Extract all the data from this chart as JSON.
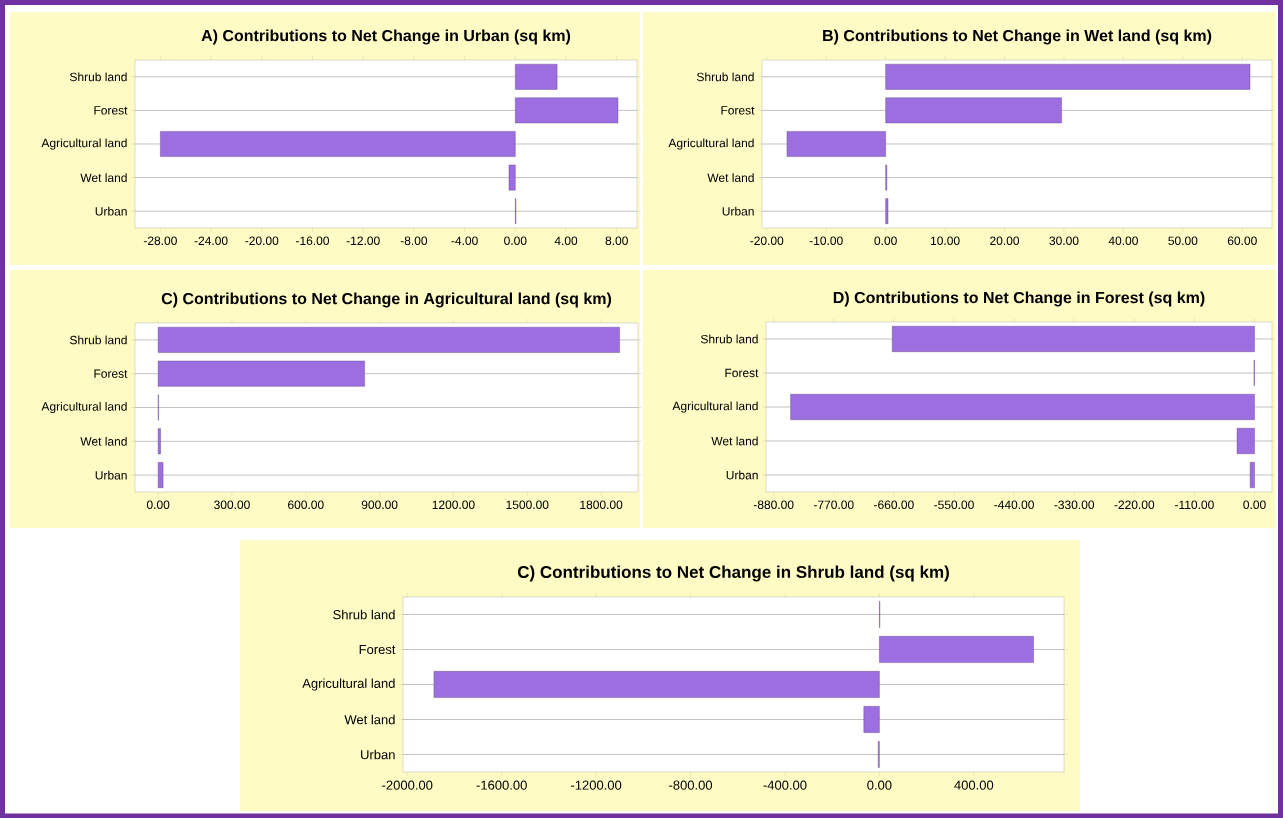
{
  "chart_data": [
    {
      "type": "bar",
      "orientation": "horizontal",
      "title": "A) Contributions to Net Change in Urban (sq km)",
      "categories": [
        "Shrub land",
        "Forest",
        "Agricultural land",
        "Wet land",
        "Urban"
      ],
      "values": [
        3.3,
        8.1,
        -28.0,
        -0.5,
        0.05
      ],
      "color": "#9c6ee0",
      "grid": "y",
      "xlim": [
        -30,
        9.6
      ],
      "xticks": [
        {
          "value": -28,
          "label": "-28.00"
        },
        {
          "value": -24,
          "label": "-24.00"
        },
        {
          "value": -20,
          "label": "-20.00"
        },
        {
          "value": -16,
          "label": "-16.00"
        },
        {
          "value": -12,
          "label": "-12.00"
        },
        {
          "value": -8,
          "label": "-8.00"
        },
        {
          "value": -4,
          "label": "-4.00"
        },
        {
          "value": 0,
          "label": "0.00"
        },
        {
          "value": 4,
          "label": "4.00"
        },
        {
          "value": 8,
          "label": "8.00"
        }
      ]
    },
    {
      "type": "bar",
      "orientation": "horizontal",
      "title": "B) Contributions to Net Change in Wet land (sq km)",
      "categories": [
        "Shrub land",
        "Forest",
        "Agricultural land",
        "Wet land",
        "Urban"
      ],
      "values": [
        61.3,
        29.6,
        -16.6,
        0.2,
        0.4
      ],
      "color": "#9c6ee0",
      "grid": "y",
      "xlim": [
        -20.8,
        65
      ],
      "xticks": [
        {
          "value": -20,
          "label": "-20.00"
        },
        {
          "value": -10,
          "label": "-10.00"
        },
        {
          "value": 0,
          "label": "0.00"
        },
        {
          "value": 10,
          "label": "10.00"
        },
        {
          "value": 20,
          "label": "20.00"
        },
        {
          "value": 30,
          "label": "30.00"
        },
        {
          "value": 40,
          "label": "40.00"
        },
        {
          "value": 50,
          "label": "50.00"
        },
        {
          "value": 60,
          "label": "60.00"
        }
      ]
    },
    {
      "type": "bar",
      "orientation": "horizontal",
      "title": "C) Contributions to Net Change in Agricultural land (sq km)",
      "categories": [
        "Shrub land",
        "Forest",
        "Agricultural land",
        "Wet land",
        "Urban"
      ],
      "values": [
        1875,
        839,
        2,
        10,
        20
      ],
      "color": "#9c6ee0",
      "grid": "y",
      "xlim": [
        -94,
        1950
      ],
      "xticks": [
        {
          "value": 0,
          "label": "0.00"
        },
        {
          "value": 300,
          "label": "300.00"
        },
        {
          "value": 600,
          "label": "600.00"
        },
        {
          "value": 900,
          "label": "900.00"
        },
        {
          "value": 1200,
          "label": "1200.00"
        },
        {
          "value": 1500,
          "label": "1500.00"
        },
        {
          "value": 1800,
          "label": "1800.00"
        }
      ]
    },
    {
      "type": "bar",
      "orientation": "horizontal",
      "title": "D) Contributions to Net Change in Forest (sq km)",
      "categories": [
        "Shrub land",
        "Forest",
        "Agricultural land",
        "Wet land",
        "Urban"
      ],
      "values": [
        -663,
        -1,
        -849,
        -32,
        -8
      ],
      "color": "#9c6ee0",
      "grid": "y",
      "xlim": [
        -894,
        32
      ],
      "xticks": [
        {
          "value": -880,
          "label": "-880.00"
        },
        {
          "value": -770,
          "label": "-770.00"
        },
        {
          "value": -660,
          "label": "-660.00"
        },
        {
          "value": -550,
          "label": "-550.00"
        },
        {
          "value": -440,
          "label": "-440.00"
        },
        {
          "value": -330,
          "label": "-330.00"
        },
        {
          "value": -220,
          "label": "-220.00"
        },
        {
          "value": -110,
          "label": "-110.00"
        },
        {
          "value": 0,
          "label": "0.00"
        }
      ]
    },
    {
      "type": "bar",
      "orientation": "horizontal",
      "title": "C) Contributions to Net Change in Shrub land (sq km)",
      "categories": [
        "Shrub land",
        "Forest",
        "Agricultural land",
        "Wet land",
        "Urban"
      ],
      "values": [
        2,
        653,
        -1887,
        -66,
        -5
      ],
      "color": "#9c6ee0",
      "grid": "y",
      "xlim": [
        -2018,
        782
      ],
      "xticks": [
        {
          "value": -2000,
          "label": "-2000.00"
        },
        {
          "value": -1600,
          "label": "-1600.00"
        },
        {
          "value": -1200,
          "label": "-1200.00"
        },
        {
          "value": -800,
          "label": "-800.00"
        },
        {
          "value": -400,
          "label": "-400.00"
        },
        {
          "value": 0,
          "label": "0.00"
        },
        {
          "value": 400,
          "label": "400.00"
        }
      ]
    }
  ]
}
